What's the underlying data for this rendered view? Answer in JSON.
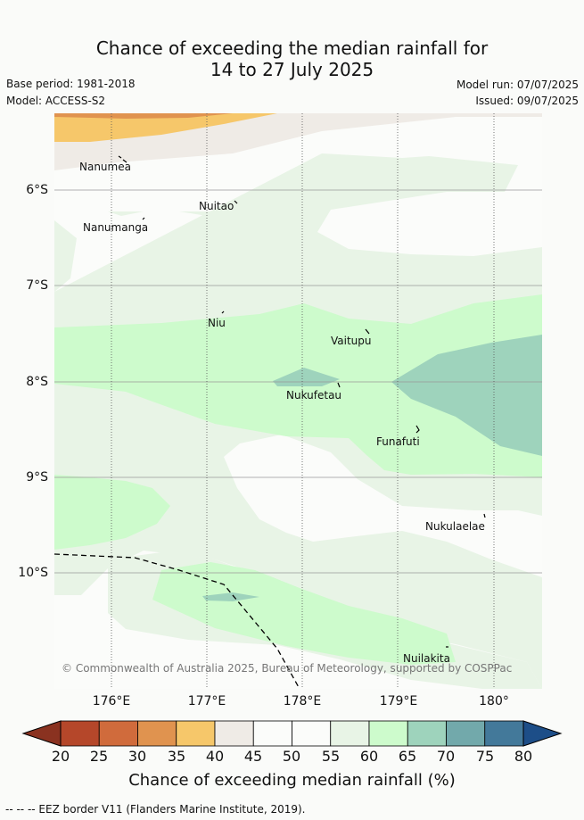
{
  "title_line1": "Chance of exceeding the median rainfall for",
  "title_line2": "14 to 27 July 2025",
  "base_period": "Base period: 1981-2018",
  "model": "Model: ACCESS-S2",
  "model_run": "Model run: 07/07/2025",
  "issued": "Issued: 09/07/2025",
  "latitude_labels": [
    "6°S",
    "7°S",
    "8°S",
    "9°S",
    "10°S"
  ],
  "longitude_labels": [
    "176°E",
    "177°E",
    "178°E",
    "179°E",
    "180°"
  ],
  "places": [
    "Nanumea",
    "Nuitao",
    "Nanumanga",
    "Niu",
    "Vaitupu",
    "Nukufetau",
    "Funafuti",
    "Nukulaelae",
    "Nuilakita"
  ],
  "copyright": "© Commonwealth of Australia 2025, Bureau of Meteorology, supported by COSPPac",
  "colorbar": {
    "title": "Chance of exceeding median rainfall (%)",
    "ticks": [
      "20",
      "25",
      "30",
      "35",
      "40",
      "45",
      "50",
      "55",
      "60",
      "65",
      "70",
      "75",
      "80"
    ],
    "colors": [
      "#b5472a",
      "#d06b3c",
      "#e0934f",
      "#f6c76a",
      "#efebe6",
      "#fbfcfa",
      "#fbfcfa",
      "#e8f4e6",
      "#cdfbcc",
      "#9ed3bc",
      "#72a9ab",
      "#43799a"
    ],
    "low_color": "#8a3220",
    "high_color": "#1d4e88"
  },
  "footer": "--  --  -- EEZ border V11 (Flanders Marine Institute, 2019)."
}
